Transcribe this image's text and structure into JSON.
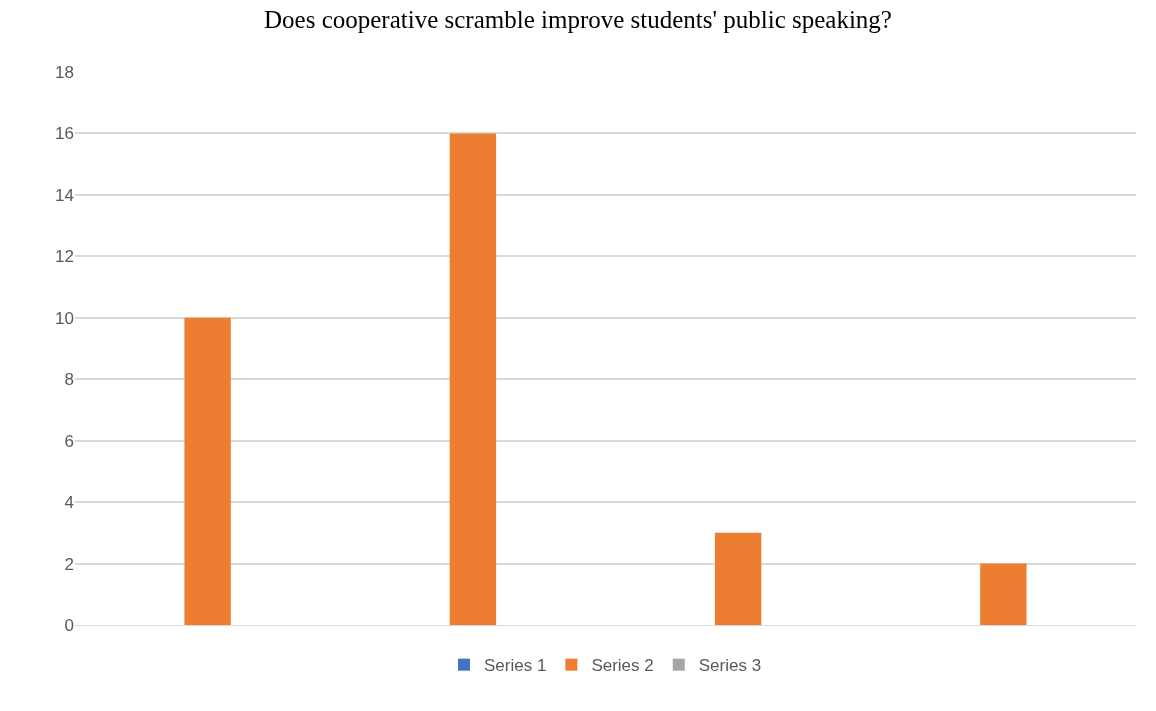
{
  "chart_data": {
    "type": "bar",
    "title": "Does cooperative scramble improve students' public speaking?",
    "categories": [
      null,
      null,
      null,
      null
    ],
    "series": [
      {
        "name": "Series 1",
        "color": "#4472c4",
        "values": [
          null,
          null,
          null,
          null
        ]
      },
      {
        "name": "Series 2",
        "color": "#ed7d31",
        "values": [
          10,
          16,
          3,
          2
        ]
      },
      {
        "name": "Series 3",
        "color": "#a5a5a5",
        "values": [
          null,
          null,
          null,
          null
        ]
      }
    ],
    "ylim": [
      0,
      18
    ],
    "yticks": [
      0,
      2,
      4,
      6,
      8,
      10,
      12,
      14,
      16,
      18
    ],
    "grid": "y",
    "legend": "bottom",
    "tick_labels": "y"
  }
}
